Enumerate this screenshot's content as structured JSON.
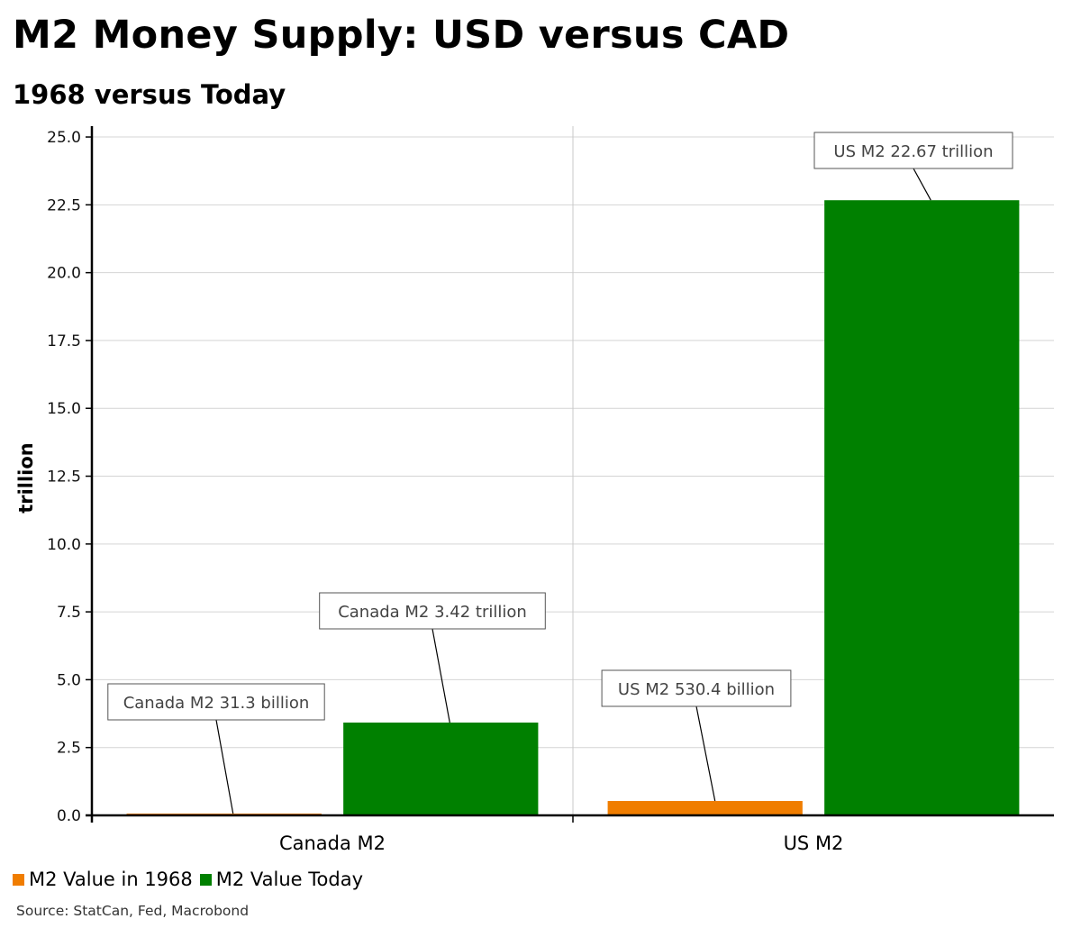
{
  "title": "M2 Money Supply: USD versus CAD",
  "subtitle": "1968 versus Today",
  "source": "Source: StatCan, Fed, Macrobond",
  "colors": {
    "series_1968": "#f07d00",
    "series_today": "#008000"
  },
  "chart_data": {
    "type": "bar",
    "categories": [
      "Canada M2",
      "US M2"
    ],
    "series": [
      {
        "name": "M2 Value in 1968",
        "values": [
          0.0313,
          0.5304
        ]
      },
      {
        "name": "M2 Value Today",
        "values": [
          3.42,
          22.67
        ]
      }
    ],
    "ylabel": "trillion",
    "xlabel": "",
    "ylim": [
      0,
      25
    ],
    "yticks": [
      "0.0",
      "2.5",
      "5.0",
      "7.5",
      "10.0",
      "12.5",
      "15.0",
      "17.5",
      "20.0",
      "22.5",
      "25.0"
    ],
    "grid": true,
    "legend_position": "bottom-left",
    "annotations": [
      {
        "text": "Canada M2 31.3 billion",
        "category": 0,
        "series": 0
      },
      {
        "text": "Canada M2 3.42 trillion",
        "category": 0,
        "series": 1
      },
      {
        "text": "US M2 530.4 billion",
        "category": 1,
        "series": 0
      },
      {
        "text": "US M2 22.67 trillion",
        "category": 1,
        "series": 1
      }
    ]
  }
}
